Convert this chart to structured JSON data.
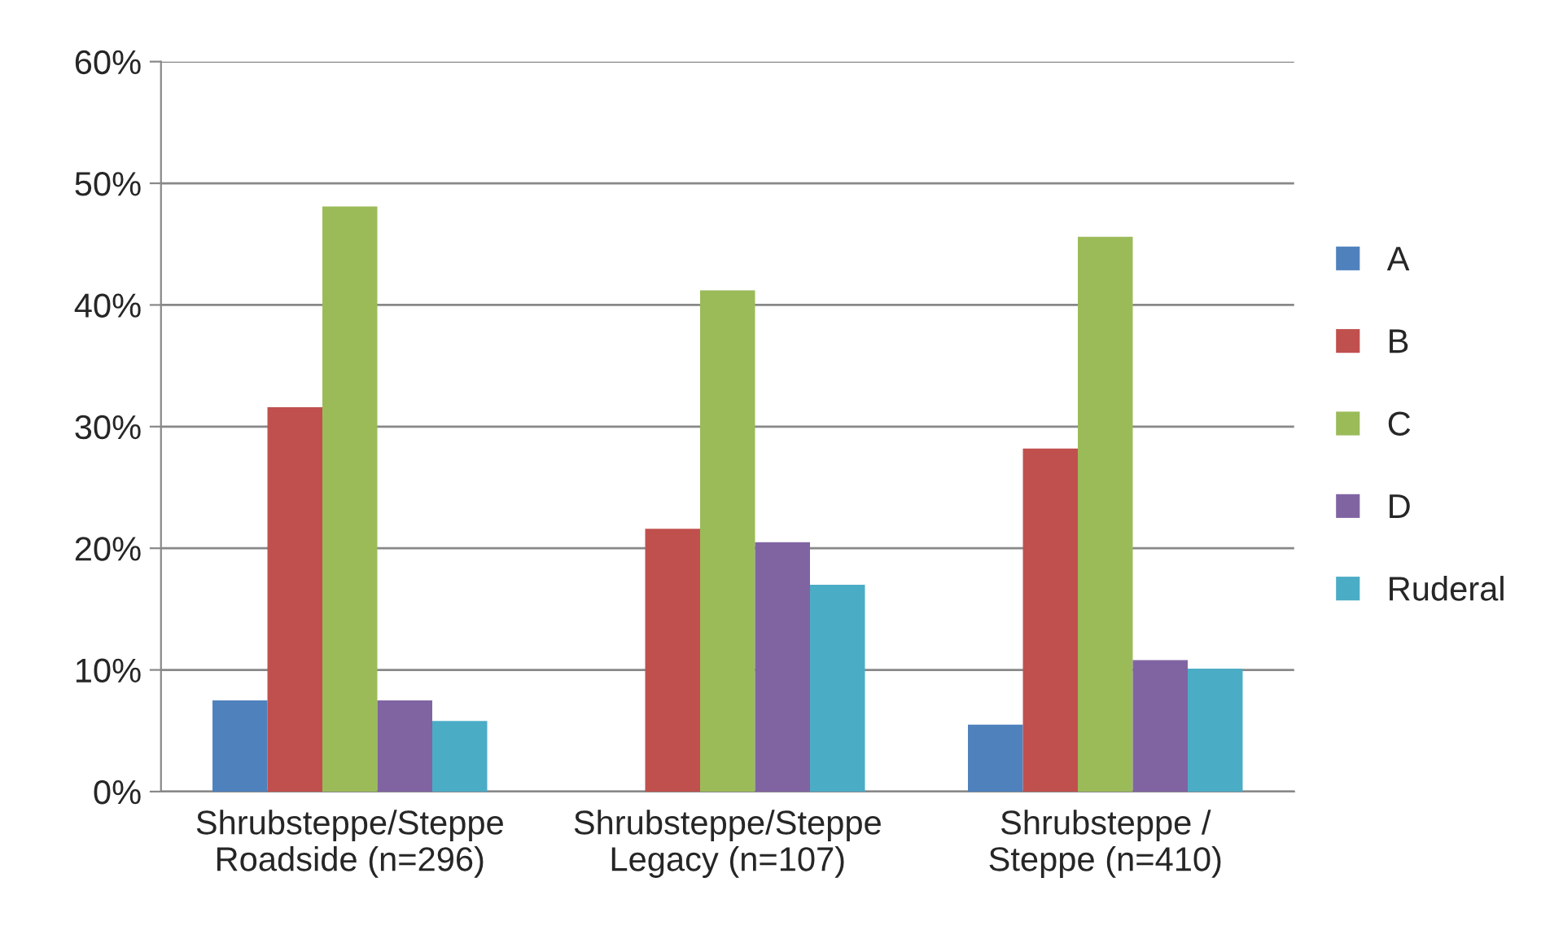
{
  "chart_data": {
    "type": "bar",
    "categories": [
      "Shrubsteppe/Steppe\nRoadside (n=296)",
      "Shrubsteppe/Steppe\nLegacy (n=107)",
      "Shrubsteppe /\nSteppe (n=410)"
    ],
    "series": [
      {
        "name": "A",
        "color": "#4f81bd",
        "values": [
          7.5,
          null,
          5.5
        ]
      },
      {
        "name": "B",
        "color": "#c0504d",
        "values": [
          31.6,
          21.6,
          28.2
        ]
      },
      {
        "name": "C",
        "color": "#9bbb59",
        "values": [
          48.1,
          41.2,
          45.6
        ]
      },
      {
        "name": "D",
        "color": "#8064a2",
        "values": [
          7.5,
          20.5,
          10.8
        ]
      },
      {
        "name": "Ruderal",
        "color": "#4bacc6",
        "values": [
          5.8,
          17.0,
          10.1
        ]
      }
    ],
    "ylim": [
      0,
      60
    ],
    "yticks": [
      {
        "value": 0,
        "label": "0%"
      },
      {
        "value": 10,
        "label": "10%"
      },
      {
        "value": 20,
        "label": "20%"
      },
      {
        "value": 30,
        "label": "30%"
      },
      {
        "value": 40,
        "label": "40%"
      },
      {
        "value": 50,
        "label": "50%"
      },
      {
        "value": 60,
        "label": "60%"
      }
    ],
    "grid": "y",
    "legend": "right"
  }
}
